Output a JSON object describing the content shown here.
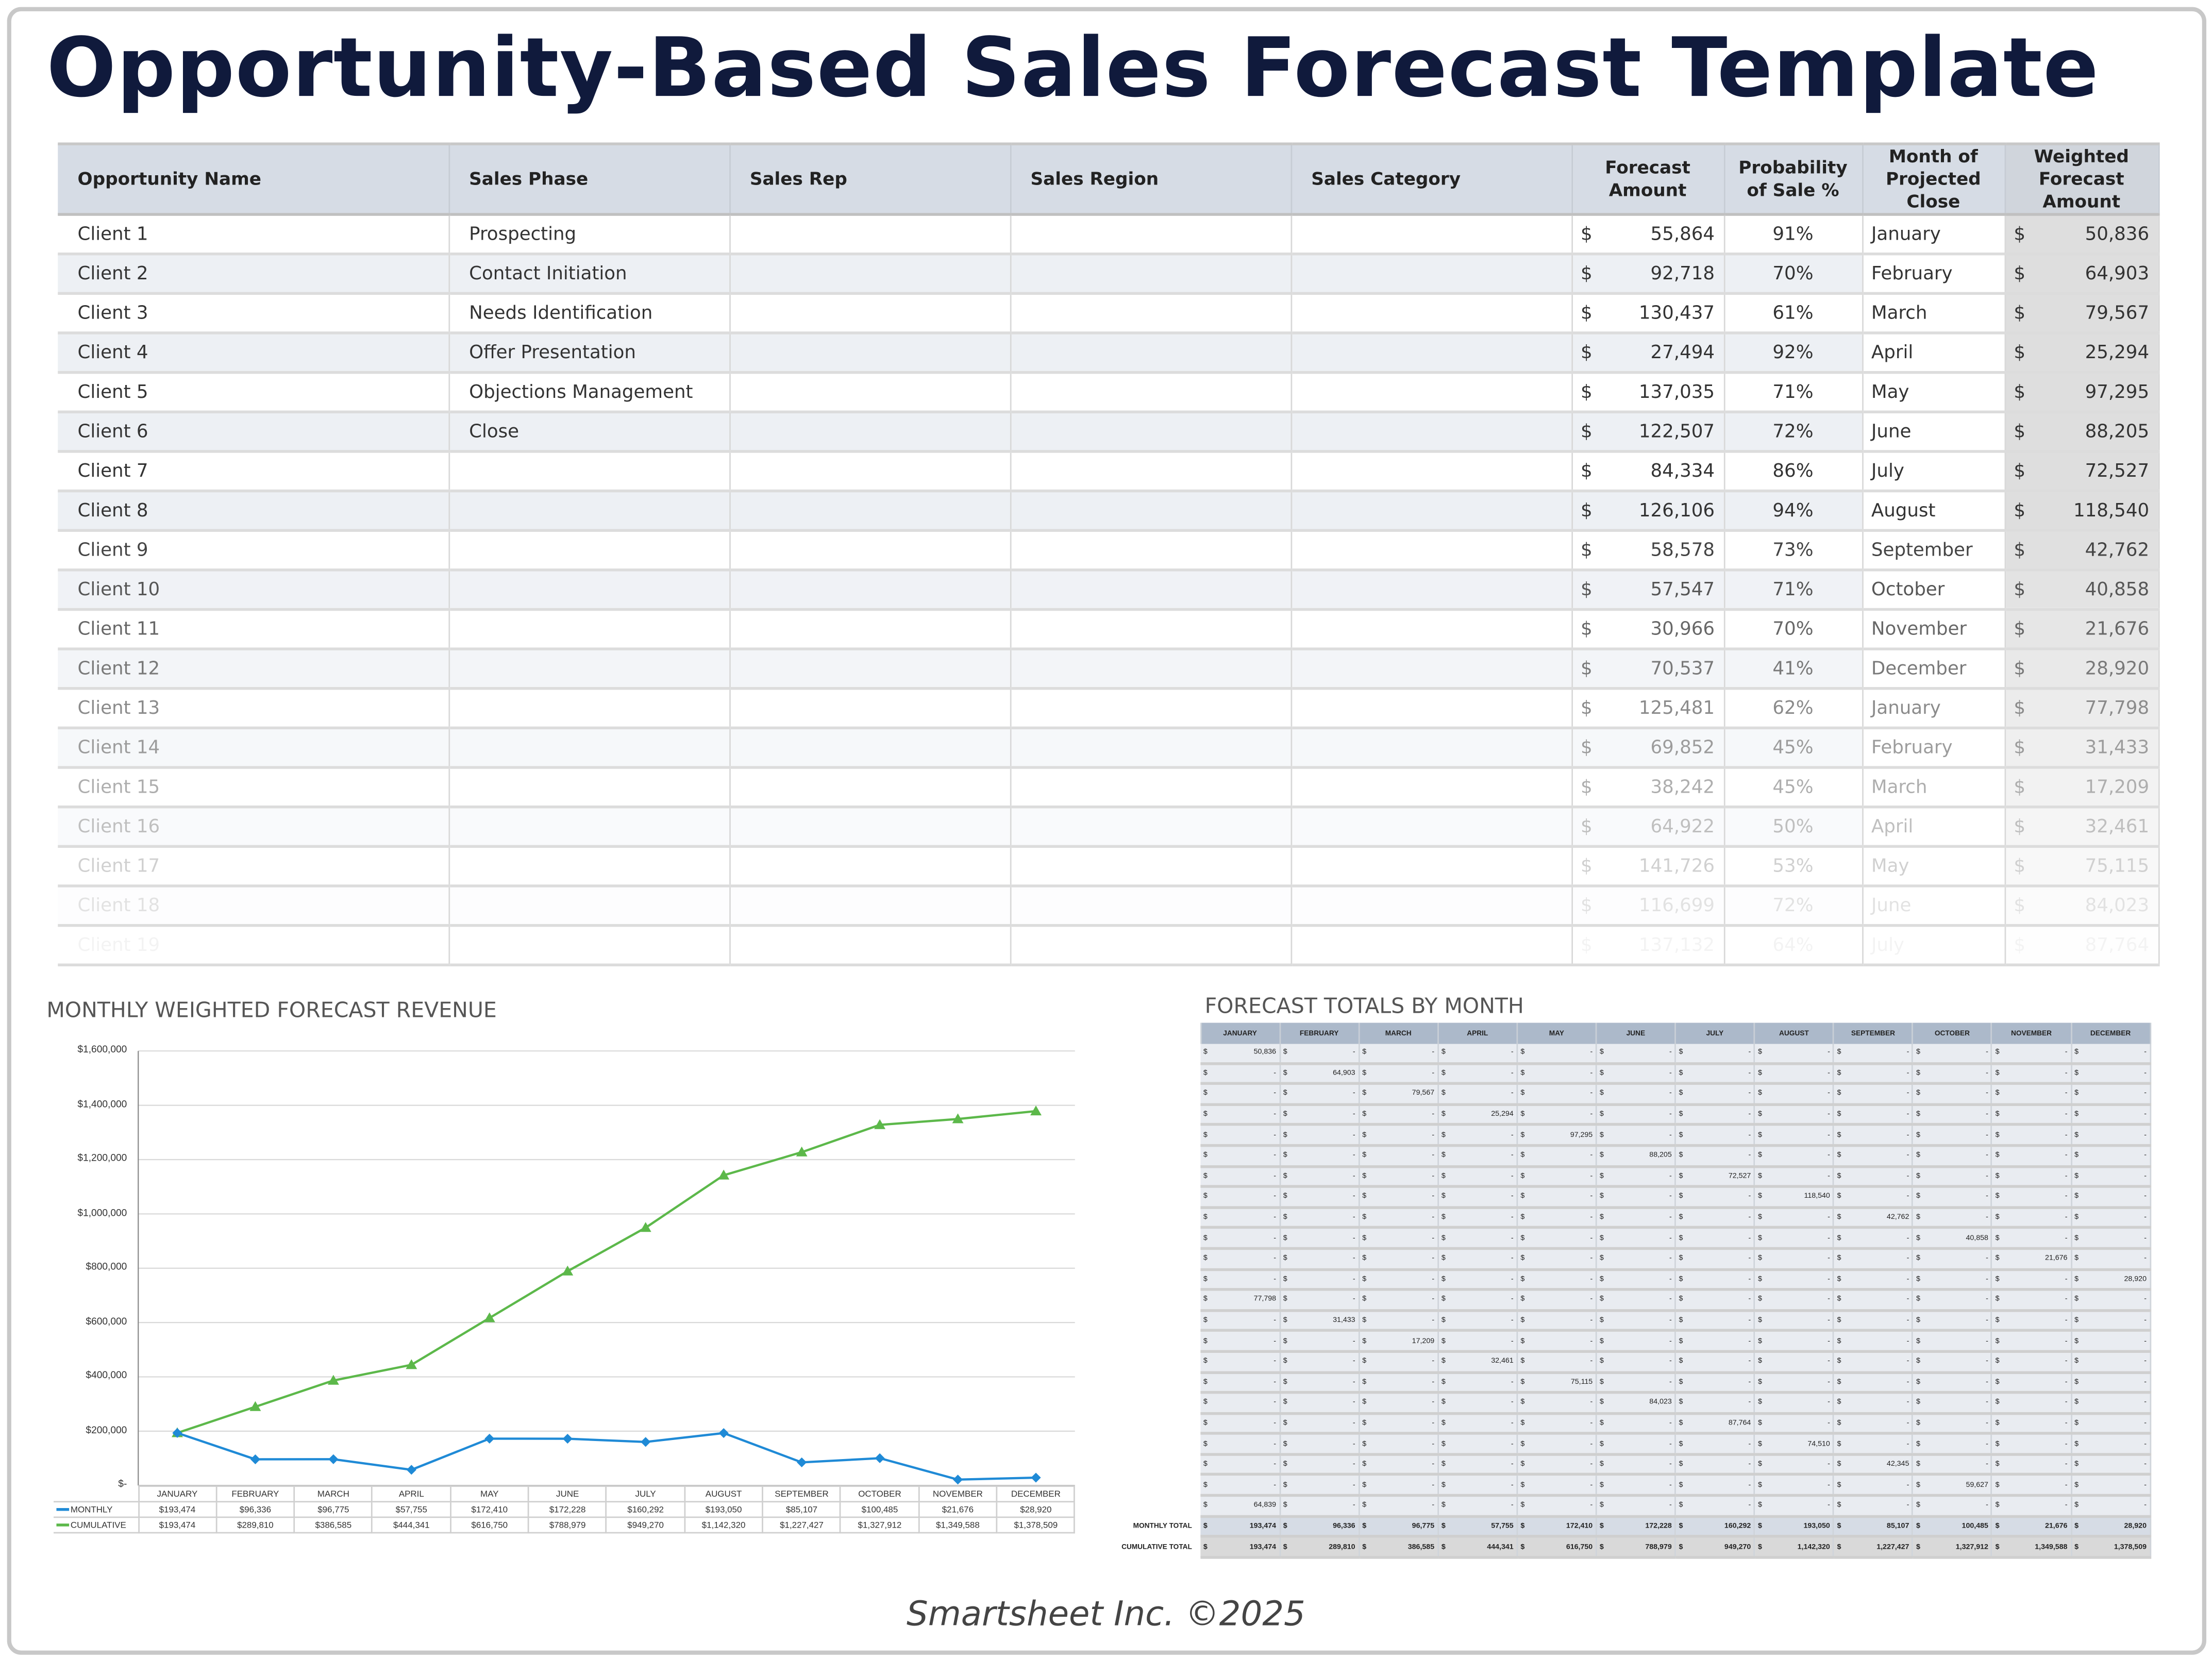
{
  "title": "Opportunity-Based Sales Forecast Template",
  "table": {
    "headers": [
      "Opportunity Name",
      "Sales Phase",
      "Sales Rep",
      "Sales Region",
      "Sales Category",
      "Forecast Amount",
      "Probability of Sale %",
      "Month of Projected Close",
      "Weighted Forecast Amount"
    ],
    "currency": "$",
    "rows": [
      {
        "name": "Client 1",
        "phase": "Prospecting",
        "rep": "",
        "region": "",
        "category": "",
        "amount": "55,864",
        "prob": "91%",
        "month": "January",
        "weighted": "50,836"
      },
      {
        "name": "Client 2",
        "phase": "Contact Initiation",
        "rep": "",
        "region": "",
        "category": "",
        "amount": "92,718",
        "prob": "70%",
        "month": "February",
        "weighted": "64,903"
      },
      {
        "name": "Client 3",
        "phase": "Needs Identification",
        "rep": "",
        "region": "",
        "category": "",
        "amount": "130,437",
        "prob": "61%",
        "month": "March",
        "weighted": "79,567"
      },
      {
        "name": "Client 4",
        "phase": "Offer Presentation",
        "rep": "",
        "region": "",
        "category": "",
        "amount": "27,494",
        "prob": "92%",
        "month": "April",
        "weighted": "25,294"
      },
      {
        "name": "Client 5",
        "phase": "Objections Management",
        "rep": "",
        "region": "",
        "category": "",
        "amount": "137,035",
        "prob": "71%",
        "month": "May",
        "weighted": "97,295"
      },
      {
        "name": "Client 6",
        "phase": "Close",
        "rep": "",
        "region": "",
        "category": "",
        "amount": "122,507",
        "prob": "72%",
        "month": "June",
        "weighted": "88,205"
      },
      {
        "name": "Client 7",
        "phase": "",
        "rep": "",
        "region": "",
        "category": "",
        "amount": "84,334",
        "prob": "86%",
        "month": "July",
        "weighted": "72,527"
      },
      {
        "name": "Client 8",
        "phase": "",
        "rep": "",
        "region": "",
        "category": "",
        "amount": "126,106",
        "prob": "94%",
        "month": "August",
        "weighted": "118,540"
      },
      {
        "name": "Client 9",
        "phase": "",
        "rep": "",
        "region": "",
        "category": "",
        "amount": "58,578",
        "prob": "73%",
        "month": "September",
        "weighted": "42,762"
      },
      {
        "name": "Client 10",
        "phase": "",
        "rep": "",
        "region": "",
        "category": "",
        "amount": "57,547",
        "prob": "71%",
        "month": "October",
        "weighted": "40,858"
      },
      {
        "name": "Client 11",
        "phase": "",
        "rep": "",
        "region": "",
        "category": "",
        "amount": "30,966",
        "prob": "70%",
        "month": "November",
        "weighted": "21,676"
      },
      {
        "name": "Client 12",
        "phase": "",
        "rep": "",
        "region": "",
        "category": "",
        "amount": "70,537",
        "prob": "41%",
        "month": "December",
        "weighted": "28,920"
      },
      {
        "name": "Client 13",
        "phase": "",
        "rep": "",
        "region": "",
        "category": "",
        "amount": "125,481",
        "prob": "62%",
        "month": "January",
        "weighted": "77,798"
      },
      {
        "name": "Client 14",
        "phase": "",
        "rep": "",
        "region": "",
        "category": "",
        "amount": "69,852",
        "prob": "45%",
        "month": "February",
        "weighted": "31,433"
      },
      {
        "name": "Client 15",
        "phase": "",
        "rep": "",
        "region": "",
        "category": "",
        "amount": "38,242",
        "prob": "45%",
        "month": "March",
        "weighted": "17,209"
      },
      {
        "name": "Client 16",
        "phase": "",
        "rep": "",
        "region": "",
        "category": "",
        "amount": "64,922",
        "prob": "50%",
        "month": "April",
        "weighted": "32,461"
      },
      {
        "name": "Client 17",
        "phase": "",
        "rep": "",
        "region": "",
        "category": "",
        "amount": "141,726",
        "prob": "53%",
        "month": "May",
        "weighted": "75,115"
      },
      {
        "name": "Client 18",
        "phase": "",
        "rep": "",
        "region": "",
        "category": "",
        "amount": "116,699",
        "prob": "72%",
        "month": "June",
        "weighted": "84,023"
      },
      {
        "name": "Client 19",
        "phase": "",
        "rep": "",
        "region": "",
        "category": "",
        "amount": "137,132",
        "prob": "64%",
        "month": "July",
        "weighted": "87,764"
      }
    ]
  },
  "chart_data": {
    "type": "line",
    "title": "MONTHLY WEIGHTED FORECAST REVENUE",
    "categories": [
      "JANUARY",
      "FEBRUARY",
      "MARCH",
      "APRIL",
      "MAY",
      "JUNE",
      "JULY",
      "AUGUST",
      "SEPTEMBER",
      "OCTOBER",
      "NOVEMBER",
      "DECEMBER"
    ],
    "ylim": [
      0,
      1600000
    ],
    "yticks": [
      "$-",
      "$200,000",
      "$400,000",
      "$600,000",
      "$800,000",
      "$1,000,000",
      "$1,200,000",
      "$1,400,000",
      "$1,600,000"
    ],
    "grid": true,
    "legend": "data-table",
    "series": [
      {
        "name": "MONTHLY",
        "color": "#1f8ad6",
        "marker": "diamond",
        "values": [
          193474,
          96336,
          96775,
          57755,
          172410,
          172228,
          160292,
          193050,
          85107,
          100485,
          21676,
          28920
        ],
        "labels": [
          "$193,474",
          "$96,336",
          "$96,775",
          "$57,755",
          "$172,410",
          "$172,228",
          "$160,292",
          "$193,050",
          "$85,107",
          "$100,485",
          "$21,676",
          "$28,920"
        ]
      },
      {
        "name": "CUMULATIVE",
        "color": "#5cb84a",
        "marker": "triangle",
        "values": [
          193474,
          289810,
          386585,
          444341,
          616750,
          788979,
          949270,
          1142320,
          1227427,
          1327912,
          1349588,
          1378509
        ],
        "labels": [
          "$193,474",
          "$289,810",
          "$386,585",
          "$444,341",
          "$616,750",
          "$788,979",
          "$949,270",
          "$1,142,320",
          "$1,227,427",
          "$1,327,912",
          "$1,349,588",
          "$1,378,509"
        ]
      }
    ]
  },
  "totals": {
    "title": "FORECAST TOTALS BY MONTH",
    "months": [
      "JANUARY",
      "FEBRUARY",
      "MARCH",
      "APRIL",
      "MAY",
      "JUNE",
      "JULY",
      "AUGUST",
      "SEPTEMBER",
      "OCTOBER",
      "NOVEMBER",
      "DECEMBER"
    ],
    "currency": "$",
    "empty": "-",
    "rows": [
      {
        "month": 0,
        "value": "50,836"
      },
      {
        "month": 1,
        "value": "64,903"
      },
      {
        "month": 2,
        "value": "79,567"
      },
      {
        "month": 3,
        "value": "25,294"
      },
      {
        "month": 4,
        "value": "97,295"
      },
      {
        "month": 5,
        "value": "88,205"
      },
      {
        "month": 6,
        "value": "72,527"
      },
      {
        "month": 7,
        "value": "118,540"
      },
      {
        "month": 8,
        "value": "42,762"
      },
      {
        "month": 9,
        "value": "40,858"
      },
      {
        "month": 10,
        "value": "21,676"
      },
      {
        "month": 11,
        "value": "28,920"
      },
      {
        "month": 0,
        "value": "77,798"
      },
      {
        "month": 1,
        "value": "31,433"
      },
      {
        "month": 2,
        "value": "17,209"
      },
      {
        "month": 3,
        "value": "32,461"
      },
      {
        "month": 4,
        "value": "75,115"
      },
      {
        "month": 5,
        "value": "84,023"
      },
      {
        "month": 6,
        "value": "87,764"
      },
      {
        "month": 7,
        "value": "74,510"
      },
      {
        "month": 8,
        "value": "42,345"
      },
      {
        "month": 9,
        "value": "59,627"
      },
      {
        "month": 0,
        "value": "64,839"
      }
    ],
    "monthly_total_label": "MONTHLY TOTAL",
    "monthly_total": [
      "193,474",
      "96,336",
      "96,775",
      "57,755",
      "172,410",
      "172,228",
      "160,292",
      "193,050",
      "85,107",
      "100,485",
      "21,676",
      "28,920"
    ],
    "cumulative_total_label": "CUMULATIVE TOTAL",
    "cumulative_total": [
      "193,474",
      "289,810",
      "386,585",
      "444,341",
      "616,750",
      "788,979",
      "949,270",
      "1,142,320",
      "1,227,427",
      "1,327,912",
      "1,349,588",
      "1,378,509"
    ]
  },
  "footer": "Smartsheet Inc. ©2025"
}
